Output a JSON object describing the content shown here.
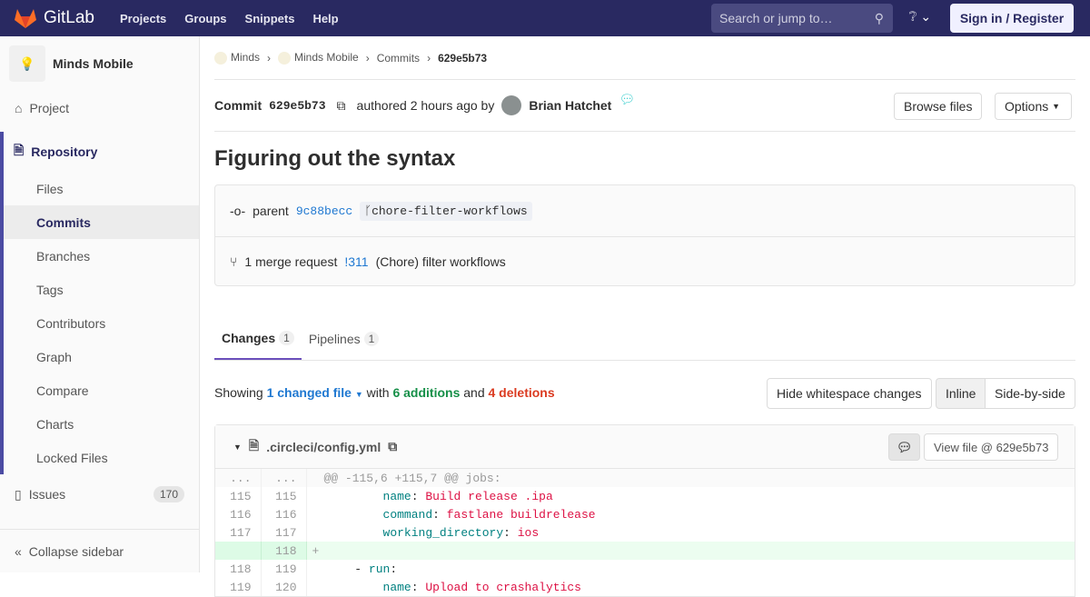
{
  "header": {
    "brand": "GitLab",
    "nav": [
      "Projects",
      "Groups",
      "Snippets",
      "Help"
    ],
    "search_placeholder": "Search or jump to…",
    "signin": "Sign in / Register"
  },
  "sidebar": {
    "project": "Minds Mobile",
    "project_item": "Project",
    "repository": "Repository",
    "sub": [
      "Files",
      "Commits",
      "Branches",
      "Tags",
      "Contributors",
      "Graph",
      "Compare",
      "Charts",
      "Locked Files"
    ],
    "issues": "Issues",
    "issues_count": "170",
    "collapse": "Collapse sidebar"
  },
  "breadcrumb": [
    "Minds",
    "Minds Mobile",
    "Commits",
    "629e5b73"
  ],
  "commit": {
    "label": "Commit",
    "sha": "629e5b73",
    "authored": "authored 2 hours ago by",
    "author": "Brian Hatchet",
    "browse": "Browse files",
    "options": "Options",
    "title": "Figuring out the syntax",
    "parent_label": "parent",
    "parent_sha": "9c88becc",
    "branch": "chore-filter-workflows",
    "mr_label": "1 merge request",
    "mr_id": "!311",
    "mr_title": "(Chore) filter workflows"
  },
  "tabs": [
    {
      "label": "Changes",
      "count": "1"
    },
    {
      "label": "Pipelines",
      "count": "1"
    }
  ],
  "summary": {
    "showing": "Showing",
    "changed": "1 changed file",
    "with": "with",
    "additions": "6 additions",
    "and": "and",
    "deletions": "4 deletions",
    "hide_ws": "Hide whitespace changes",
    "inline": "Inline",
    "side": "Side-by-side"
  },
  "file": {
    "name": ".circleci/config.yml",
    "view": "View file @ 629e5b73"
  },
  "diff": [
    {
      "old": "...",
      "new": "...",
      "type": "hunk",
      "text": "@@ -115,6 +115,7 @@ jobs:"
    },
    {
      "old": "115",
      "new": "115",
      "type": "ctx",
      "indent": "          ",
      "key": "name",
      "val": "Build release .ipa"
    },
    {
      "old": "116",
      "new": "116",
      "type": "ctx",
      "indent": "          ",
      "key": "command",
      "val": "fastlane buildrelease"
    },
    {
      "old": "117",
      "new": "117",
      "type": "ctx",
      "indent": "          ",
      "key": "working_directory",
      "val": "ios"
    },
    {
      "old": "",
      "new": "118",
      "type": "add",
      "text": "+"
    },
    {
      "old": "118",
      "new": "119",
      "type": "ctx",
      "indent": "      - ",
      "key": "run",
      "val": ""
    },
    {
      "old": "119",
      "new": "120",
      "type": "ctx",
      "indent": "          ",
      "key": "name",
      "val": "Upload to crashalytics"
    }
  ]
}
